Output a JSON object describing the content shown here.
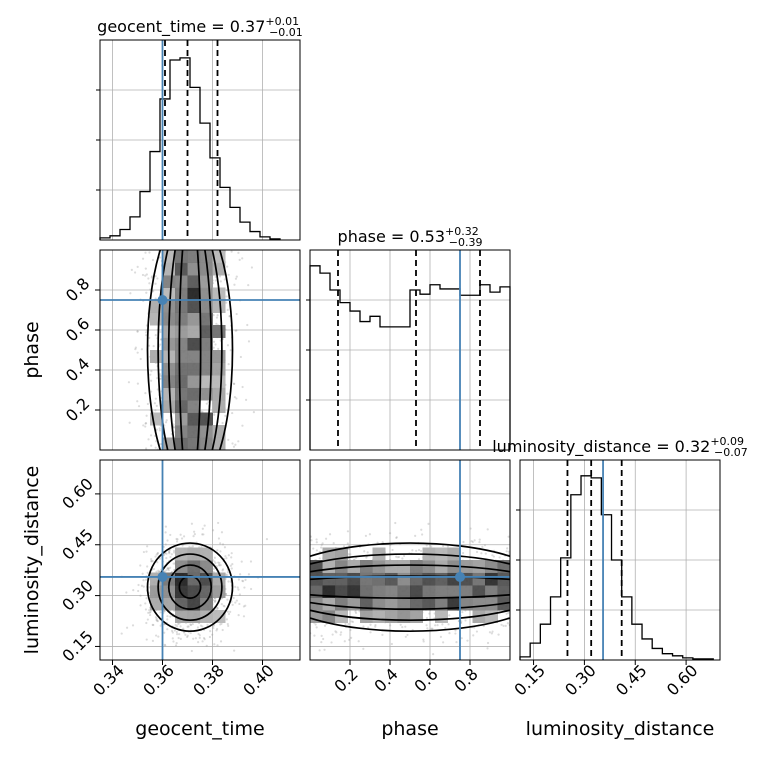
{
  "chart_data": {
    "type": "corner",
    "parameters": [
      "geocent_time",
      "phase",
      "luminosity_distance"
    ],
    "axis_labels": {
      "geocent_time": "geocent_time",
      "phase": "phase",
      "luminosity_distance": "luminosity_distance"
    },
    "ranges": {
      "geocent_time": [
        0.335,
        0.415
      ],
      "phase": [
        0.0,
        1.0
      ],
      "luminosity_distance": [
        0.11,
        0.7
      ]
    },
    "ticks": {
      "geocent_time": {
        "values": [
          0.34,
          0.36,
          0.38,
          0.4
        ],
        "labels": [
          "0.34",
          "0.36",
          "0.38",
          "0.40"
        ]
      },
      "phase": {
        "values": [
          0.2,
          0.4,
          0.6,
          0.8
        ],
        "labels": [
          "0.2",
          "0.4",
          "0.6",
          "0.8"
        ]
      },
      "luminosity_distance": {
        "values": [
          0.15,
          0.3,
          0.45,
          0.6
        ],
        "labels": [
          "0.15",
          "0.30",
          "0.45",
          "0.60"
        ]
      }
    },
    "truths": {
      "geocent_time": 0.36,
      "phase": 0.75,
      "luminosity_distance": 0.355
    },
    "quantiles": {
      "geocent_time": [
        0.361,
        0.37,
        0.382
      ],
      "phase": [
        0.14,
        0.53,
        0.85
      ],
      "luminosity_distance": [
        0.25,
        0.32,
        0.41
      ]
    },
    "titles": {
      "geocent_time": {
        "main": "geocent_time = 0.37",
        "sup": "+0.01",
        "sub": "−0.01"
      },
      "phase": {
        "main": "phase = 0.53",
        "sup": "+0.32",
        "sub": "−0.39"
      },
      "luminosity_distance": {
        "main": "luminosity_distance = 0.32",
        "sup": "+0.09",
        "sub": "−0.07"
      }
    },
    "histograms": {
      "geocent_time": {
        "edges": [
          0.335,
          0.339,
          0.343,
          0.347,
          0.351,
          0.355,
          0.359,
          0.363,
          0.367,
          0.371,
          0.375,
          0.379,
          0.383,
          0.387,
          0.391,
          0.395,
          0.399,
          0.403,
          0.407
        ],
        "counts": [
          2,
          4,
          10,
          22,
          46,
          84,
          134,
          171,
          173,
          145,
          111,
          78,
          50,
          31,
          17,
          8,
          3,
          1
        ],
        "ymax": 190
      },
      "phase": {
        "edges": [
          0.0,
          0.05,
          0.1,
          0.15,
          0.2,
          0.25,
          0.3,
          0.35,
          0.4,
          0.45,
          0.5,
          0.55,
          0.6,
          0.65,
          0.7,
          0.75,
          0.8,
          0.85,
          0.9,
          0.95,
          1.0
        ],
        "counts": [
          175,
          168,
          152,
          140,
          132,
          122,
          127,
          117,
          117,
          117,
          152,
          148,
          157,
          153,
          153,
          147,
          147,
          157,
          150,
          155
        ],
        "ymax": 190
      },
      "luminosity_distance": {
        "edges": [
          0.11,
          0.14,
          0.17,
          0.2,
          0.23,
          0.26,
          0.29,
          0.32,
          0.35,
          0.38,
          0.41,
          0.44,
          0.47,
          0.5,
          0.53,
          0.56,
          0.59,
          0.62,
          0.65,
          0.68
        ],
        "counts": [
          3,
          16,
          34,
          60,
          97,
          157,
          175,
          173,
          138,
          95,
          60,
          34,
          20,
          11,
          6,
          4,
          2,
          1,
          1
        ],
        "ymax": 190
      }
    },
    "contour_levels": [
      "0.5",
      "1.0",
      "1.5",
      "2.0"
    ],
    "sample_counts": {
      "scatter_per_panel": 1400
    }
  }
}
